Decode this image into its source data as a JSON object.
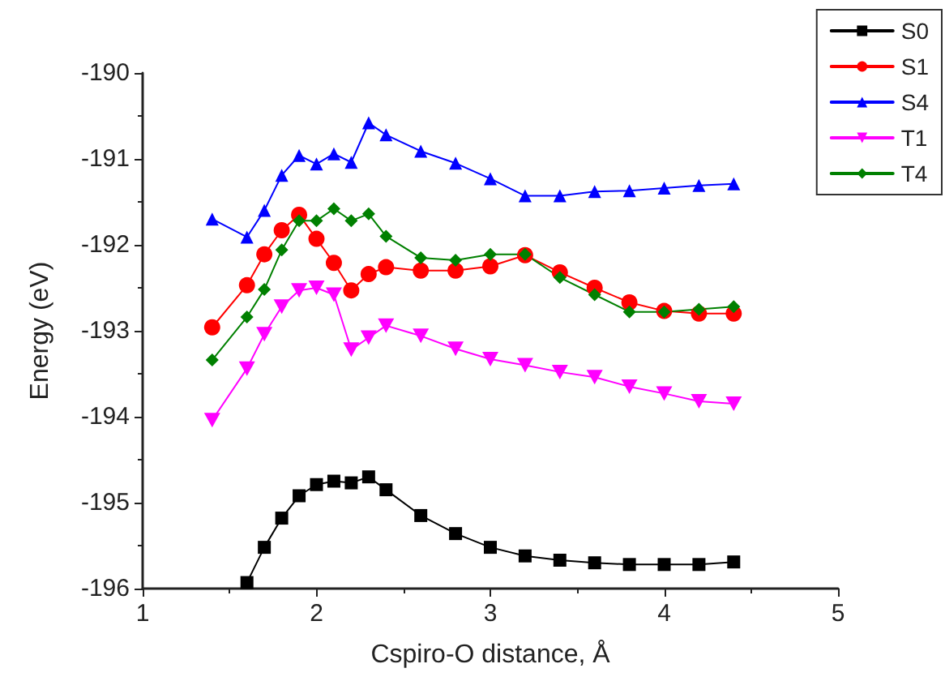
{
  "chart_data": {
    "type": "line",
    "xlabel": "Cspiro-O distance, Å",
    "ylabel": "Energy (eV)",
    "xlim": [
      1,
      5
    ],
    "xticks": [
      1,
      2,
      3,
      4,
      5
    ],
    "ylim": [
      -196,
      -190
    ],
    "yticks": [
      -196,
      -195,
      -194,
      -193,
      -192,
      -191,
      -190
    ],
    "grid": false,
    "legend": "top right",
    "line_style": "solid",
    "series": [
      {
        "name": "S0",
        "color": "#000000",
        "marker": "square",
        "x": [
          1.6,
          1.7,
          1.8,
          1.9,
          2.0,
          2.1,
          2.2,
          2.3,
          2.4,
          2.6,
          2.8,
          3.0,
          3.2,
          3.4,
          3.6,
          3.8,
          4.0,
          4.2,
          4.4
        ],
        "values": [
          -195.93,
          -195.52,
          -195.18,
          -194.92,
          -194.79,
          -194.75,
          -194.77,
          -194.7,
          -194.85,
          -195.15,
          -195.36,
          -195.52,
          -195.62,
          -195.67,
          -195.7,
          -195.72,
          -195.72,
          -195.72,
          -195.69
        ]
      },
      {
        "name": "S1",
        "color": "#ff0000",
        "marker": "circle",
        "x": [
          1.4,
          1.6,
          1.7,
          1.8,
          1.9,
          2.0,
          2.1,
          2.2,
          2.3,
          2.4,
          2.6,
          2.8,
          3.0,
          3.2,
          3.4,
          3.6,
          3.8,
          4.0,
          4.2,
          4.4
        ],
        "values": [
          -192.96,
          -192.47,
          -192.11,
          -191.83,
          -191.65,
          -191.93,
          -192.21,
          -192.53,
          -192.34,
          -192.26,
          -192.3,
          -192.3,
          -192.25,
          -192.12,
          -192.32,
          -192.5,
          -192.67,
          -192.77,
          -192.8,
          -192.8
        ]
      },
      {
        "name": "S4",
        "color": "#0000ff",
        "marker": "triangle",
        "x": [
          1.4,
          1.6,
          1.7,
          1.8,
          1.9,
          2.0,
          2.1,
          2.2,
          2.3,
          2.4,
          2.6,
          2.8,
          3.0,
          3.2,
          3.4,
          3.6,
          3.8,
          4.0,
          4.2,
          4.4
        ],
        "values": [
          -191.7,
          -191.91,
          -191.6,
          -191.19,
          -190.96,
          -191.06,
          -190.94,
          -191.04,
          -190.58,
          -190.72,
          -190.91,
          -191.05,
          -191.23,
          -191.43,
          -191.43,
          -191.38,
          -191.37,
          -191.34,
          -191.31,
          -191.29
        ]
      },
      {
        "name": "T1",
        "color": "#ff00ff",
        "marker": "triangle-down",
        "x": [
          1.4,
          1.6,
          1.7,
          1.8,
          1.9,
          2.0,
          2.1,
          2.2,
          2.3,
          2.4,
          2.6,
          2.8,
          3.0,
          3.2,
          3.4,
          3.6,
          3.8,
          4.0,
          4.2,
          4.4
        ],
        "values": [
          -194.04,
          -193.44,
          -193.04,
          -192.72,
          -192.53,
          -192.5,
          -192.58,
          -193.22,
          -193.08,
          -192.94,
          -193.06,
          -193.21,
          -193.33,
          -193.4,
          -193.48,
          -193.54,
          -193.65,
          -193.73,
          -193.82,
          -193.85
        ]
      },
      {
        "name": "T4",
        "color": "#008000",
        "marker": "diamond",
        "x": [
          1.4,
          1.6,
          1.7,
          1.8,
          1.9,
          2.0,
          2.1,
          2.2,
          2.3,
          2.4,
          2.6,
          2.8,
          3.0,
          3.2,
          3.4,
          3.6,
          3.8,
          4.0,
          4.2,
          4.4
        ],
        "values": [
          -193.34,
          -192.84,
          -192.52,
          -192.06,
          -191.72,
          -191.72,
          -191.58,
          -191.72,
          -191.64,
          -191.9,
          -192.15,
          -192.18,
          -192.11,
          -192.11,
          -192.38,
          -192.58,
          -192.78,
          -192.78,
          -192.75,
          -192.72
        ]
      }
    ]
  }
}
